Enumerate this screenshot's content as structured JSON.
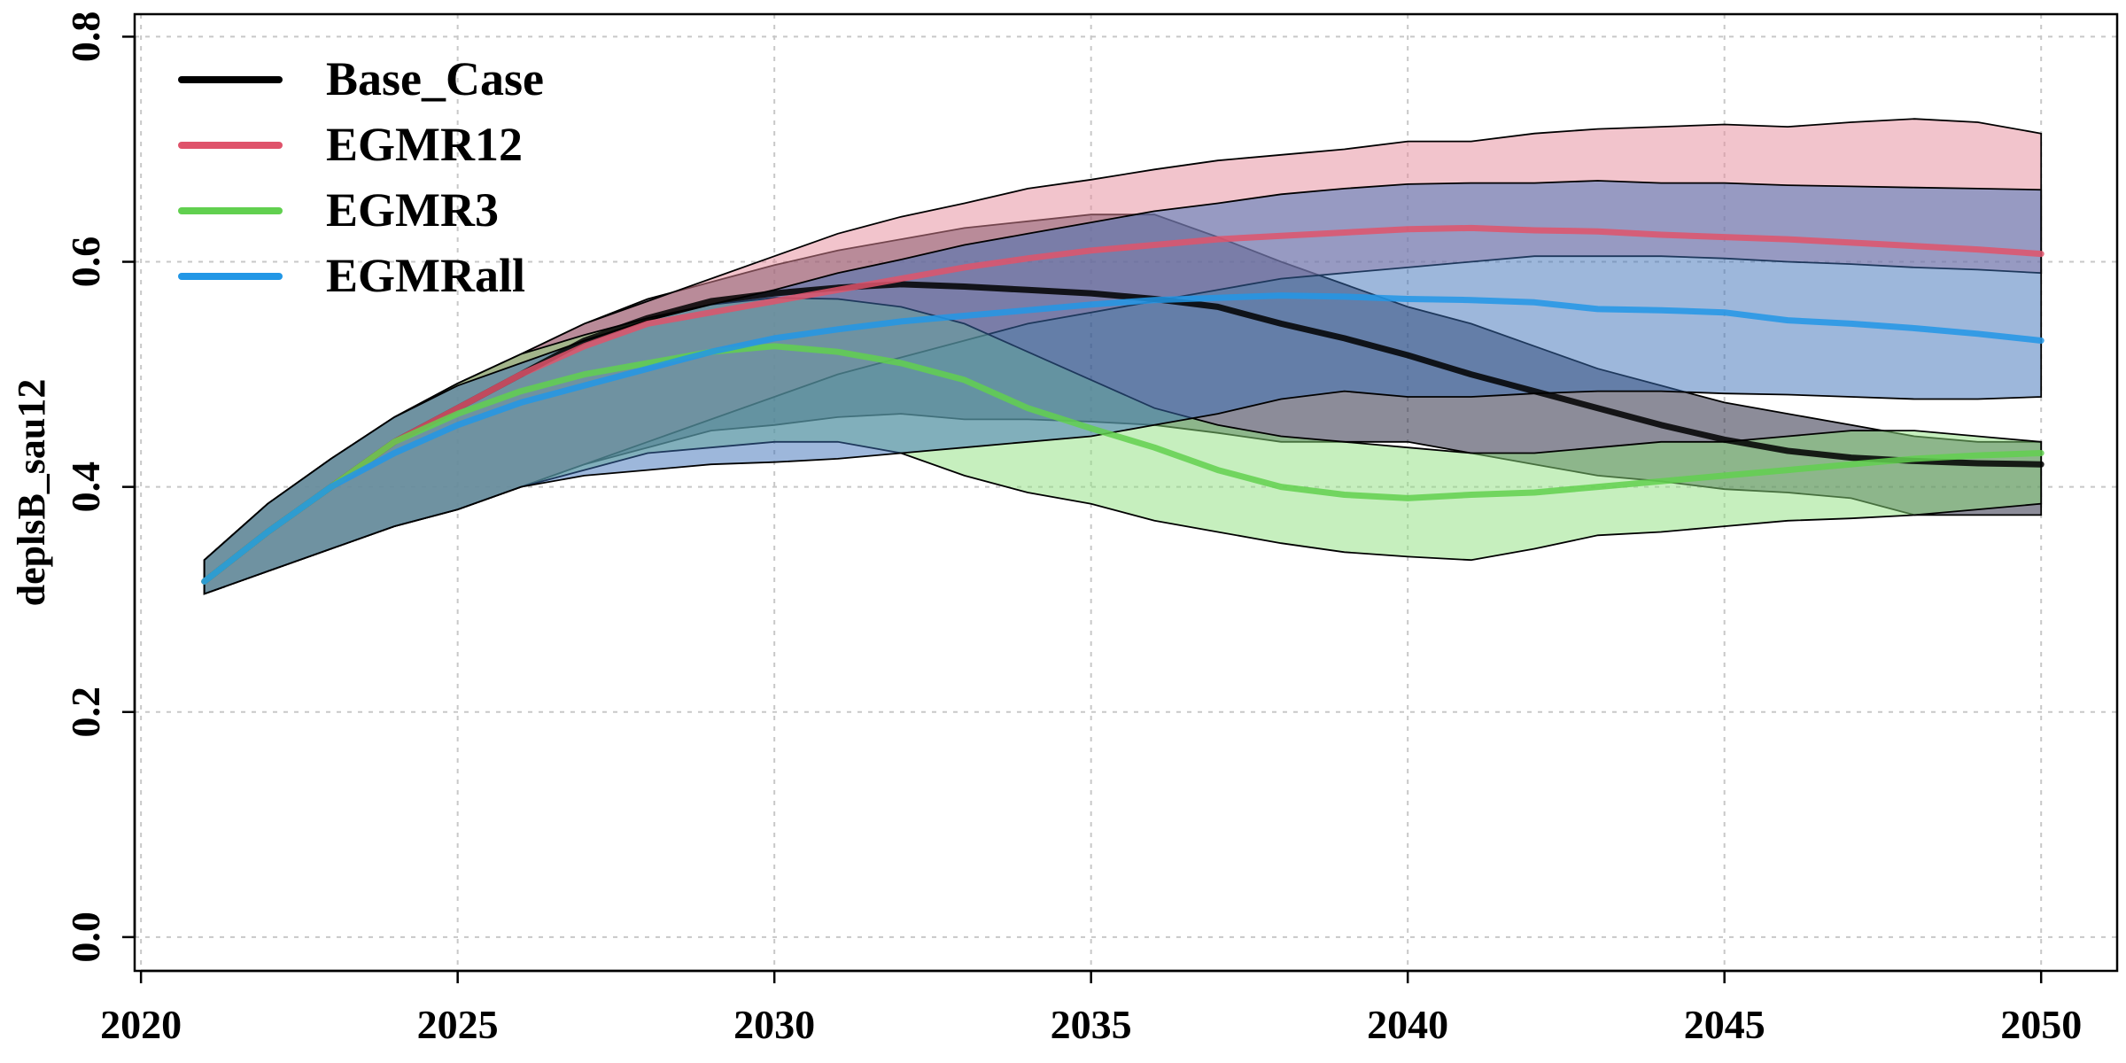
{
  "chart_data": {
    "type": "area",
    "title": "",
    "xlabel": "",
    "ylabel": "deplsB_sau12",
    "xlim": [
      2019.9,
      2051.2
    ],
    "ylim": [
      -0.03,
      0.82
    ],
    "xticks": [
      2020,
      2025,
      2030,
      2035,
      2040,
      2045,
      2050
    ],
    "yticks": [
      0.0,
      0.2,
      0.4,
      0.6,
      0.8
    ],
    "xtick_labels": [
      "2020",
      "2025",
      "2030",
      "2035",
      "2040",
      "2045",
      "2050"
    ],
    "ytick_labels": [
      "0.0",
      "0.2",
      "0.4",
      "0.6",
      "0.8"
    ],
    "grid": true,
    "legend_position": "top-left",
    "x": [
      2021,
      2022,
      2023,
      2024,
      2025,
      2026,
      2027,
      2028,
      2029,
      2030,
      2031,
      2032,
      2033,
      2034,
      2035,
      2036,
      2037,
      2038,
      2039,
      2040,
      2041,
      2042,
      2043,
      2044,
      2045,
      2046,
      2047,
      2048,
      2049,
      2050
    ],
    "series": [
      {
        "name": "Base_Case",
        "color": "#000000",
        "fill": "#1a1a33",
        "median": [
          0.316,
          0.36,
          0.4,
          0.44,
          0.47,
          0.5,
          0.53,
          0.55,
          0.565,
          0.572,
          0.577,
          0.58,
          0.578,
          0.575,
          0.572,
          0.567,
          0.56,
          0.545,
          0.532,
          0.517,
          0.5,
          0.485,
          0.47,
          0.455,
          0.442,
          0.432,
          0.426,
          0.423,
          0.421,
          0.42
        ],
        "upper": [
          0.335,
          0.385,
          0.425,
          0.462,
          0.492,
          0.518,
          0.545,
          0.567,
          0.582,
          0.597,
          0.61,
          0.62,
          0.63,
          0.636,
          0.642,
          0.642,
          0.622,
          0.6,
          0.58,
          0.56,
          0.545,
          0.525,
          0.505,
          0.49,
          0.475,
          0.465,
          0.455,
          0.445,
          0.44,
          0.44
        ],
        "lower": [
          0.305,
          0.325,
          0.345,
          0.365,
          0.38,
          0.4,
          0.42,
          0.435,
          0.45,
          0.455,
          0.462,
          0.465,
          0.46,
          0.46,
          0.458,
          0.455,
          0.448,
          0.44,
          0.44,
          0.44,
          0.43,
          0.42,
          0.41,
          0.405,
          0.398,
          0.395,
          0.39,
          0.375,
          0.375,
          0.375
        ]
      },
      {
        "name": "EGMR12",
        "color": "#df536b",
        "fill": "#e58a9a",
        "median": [
          0.316,
          0.36,
          0.4,
          0.44,
          0.47,
          0.5,
          0.525,
          0.545,
          0.555,
          0.565,
          0.575,
          0.585,
          0.595,
          0.603,
          0.61,
          0.615,
          0.62,
          0.623,
          0.626,
          0.629,
          0.63,
          0.628,
          0.627,
          0.624,
          0.622,
          0.62,
          0.617,
          0.614,
          0.611,
          0.607
        ],
        "upper": [
          0.335,
          0.385,
          0.425,
          0.462,
          0.492,
          0.518,
          0.545,
          0.565,
          0.585,
          0.605,
          0.625,
          0.64,
          0.652,
          0.665,
          0.673,
          0.682,
          0.69,
          0.695,
          0.7,
          0.707,
          0.707,
          0.714,
          0.718,
          0.72,
          0.722,
          0.72,
          0.724,
          0.727,
          0.724,
          0.714
        ],
        "lower": [
          0.305,
          0.325,
          0.345,
          0.365,
          0.38,
          0.4,
          0.42,
          0.44,
          0.46,
          0.48,
          0.5,
          0.515,
          0.53,
          0.545,
          0.555,
          0.565,
          0.575,
          0.585,
          0.59,
          0.595,
          0.6,
          0.605,
          0.605,
          0.605,
          0.603,
          0.6,
          0.598,
          0.595,
          0.593,
          0.59
        ]
      },
      {
        "name": "EGMR3",
        "color": "#61d04f",
        "fill": "#8ee07e",
        "median": [
          0.316,
          0.36,
          0.4,
          0.44,
          0.465,
          0.485,
          0.5,
          0.51,
          0.52,
          0.525,
          0.52,
          0.51,
          0.495,
          0.47,
          0.452,
          0.435,
          0.415,
          0.4,
          0.393,
          0.39,
          0.393,
          0.395,
          0.4,
          0.405,
          0.41,
          0.415,
          0.42,
          0.425,
          0.428,
          0.43
        ],
        "upper": [
          0.335,
          0.385,
          0.425,
          0.462,
          0.492,
          0.518,
          0.535,
          0.55,
          0.562,
          0.568,
          0.567,
          0.56,
          0.545,
          0.52,
          0.495,
          0.47,
          0.455,
          0.445,
          0.44,
          0.435,
          0.43,
          0.43,
          0.435,
          0.44,
          0.44,
          0.445,
          0.45,
          0.45,
          0.445,
          0.44
        ],
        "lower": [
          0.305,
          0.325,
          0.345,
          0.365,
          0.38,
          0.4,
          0.415,
          0.43,
          0.435,
          0.44,
          0.44,
          0.43,
          0.41,
          0.395,
          0.385,
          0.37,
          0.36,
          0.35,
          0.342,
          0.338,
          0.335,
          0.345,
          0.357,
          0.36,
          0.365,
          0.37,
          0.372,
          0.375,
          0.38,
          0.385
        ]
      },
      {
        "name": "EGMRall",
        "color": "#2297e6",
        "fill": "#3c6fb8",
        "median": [
          0.316,
          0.36,
          0.4,
          0.43,
          0.455,
          0.475,
          0.49,
          0.505,
          0.52,
          0.532,
          0.54,
          0.547,
          0.552,
          0.557,
          0.562,
          0.566,
          0.568,
          0.57,
          0.569,
          0.567,
          0.566,
          0.564,
          0.558,
          0.557,
          0.555,
          0.548,
          0.545,
          0.541,
          0.536,
          0.53
        ],
        "upper": [
          0.335,
          0.385,
          0.425,
          0.462,
          0.49,
          0.51,
          0.53,
          0.548,
          0.562,
          0.575,
          0.59,
          0.602,
          0.615,
          0.625,
          0.635,
          0.645,
          0.652,
          0.66,
          0.665,
          0.669,
          0.67,
          0.67,
          0.672,
          0.67,
          0.67,
          0.668,
          0.667,
          0.666,
          0.665,
          0.664
        ],
        "lower": [
          0.305,
          0.325,
          0.345,
          0.365,
          0.38,
          0.4,
          0.41,
          0.415,
          0.42,
          0.422,
          0.425,
          0.43,
          0.435,
          0.44,
          0.445,
          0.455,
          0.465,
          0.478,
          0.485,
          0.48,
          0.48,
          0.483,
          0.485,
          0.485,
          0.483,
          0.482,
          0.48,
          0.478,
          0.478,
          0.48
        ]
      }
    ]
  }
}
